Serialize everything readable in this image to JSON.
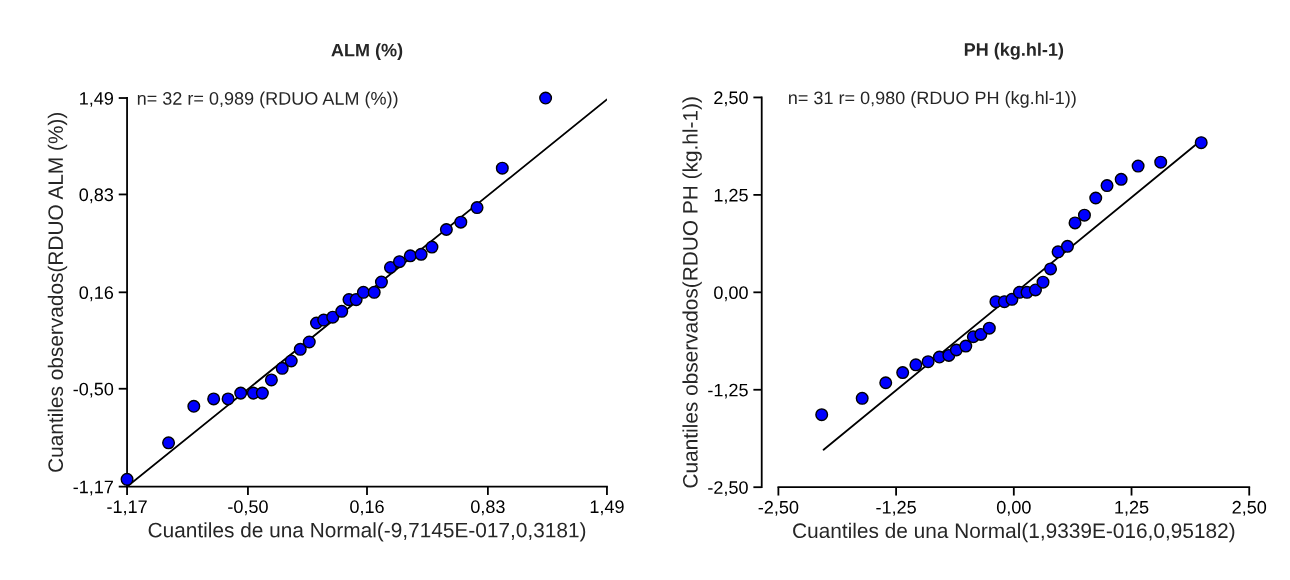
{
  "chart_data": [
    {
      "type": "scatter",
      "title": "ALM (%)",
      "xlabel": "Cuantiles de una Normal(-9,7145E-017,0,3181)",
      "ylabel": "Cuantiles observados(RDUO ALM (%))",
      "annotations": [
        "n= 32 r= 0,989 (RDUO ALM (%))"
      ],
      "xlim": [
        -1.17,
        1.49
      ],
      "ylim": [
        -1.17,
        1.49
      ],
      "xticks": [
        {
          "value": -1.17,
          "label": "-1,17"
        },
        {
          "value": -0.5,
          "label": "-0,50"
        },
        {
          "value": 0.16,
          "label": "0,16"
        },
        {
          "value": 0.83,
          "label": "0,83"
        },
        {
          "value": 1.49,
          "label": "1,49"
        }
      ],
      "yticks": [
        {
          "value": -1.17,
          "label": "-1,17"
        },
        {
          "value": -0.5,
          "label": "-0,50"
        },
        {
          "value": 0.16,
          "label": "0,16"
        },
        {
          "value": 0.83,
          "label": "0,83"
        },
        {
          "value": 1.49,
          "label": "1,49"
        }
      ],
      "grid": false,
      "marker": "circle",
      "series": [
        {
          "color": "#0000ff",
          "x": [
            -1.17,
            -0.94,
            -0.8,
            -0.69,
            -0.61,
            -0.54,
            -0.47,
            -0.42,
            -0.37,
            -0.31,
            -0.26,
            -0.21,
            -0.16,
            -0.12,
            -0.08,
            -0.03,
            0.02,
            0.06,
            0.1,
            0.14,
            0.2,
            0.24,
            0.29,
            0.34,
            0.4,
            0.46,
            0.52,
            0.6,
            0.68,
            0.77,
            0.91,
            1.15
          ],
          "values": [
            -1.12,
            -0.87,
            -0.62,
            -0.57,
            -0.57,
            -0.53,
            -0.53,
            -0.53,
            -0.44,
            -0.36,
            -0.31,
            -0.23,
            -0.18,
            -0.05,
            -0.03,
            -0.01,
            0.03,
            0.11,
            0.11,
            0.16,
            0.16,
            0.23,
            0.33,
            0.37,
            0.41,
            0.42,
            0.47,
            0.59,
            0.64,
            0.74,
            1.01,
            1.49
          ]
        },
        {
          "type": "line",
          "color": "#000000",
          "x": [
            -1.17,
            1.49
          ],
          "values": [
            -1.17,
            1.48
          ],
          "marker": "none"
        }
      ]
    },
    {
      "type": "scatter",
      "title": "PH (kg.hl-1)",
      "xlabel": "Cuantiles de una Normal(1,9339E-016,0,95182)",
      "ylabel": "Cuantiles observados(RDUO PH (kg.hl-1))",
      "annotations": [
        "n= 31 r= 0,980 (RDUO PH (kg.hl-1))"
      ],
      "xlim": [
        -2.5,
        2.5
      ],
      "ylim": [
        -2.5,
        2.5
      ],
      "xticks": [
        {
          "value": -2.5,
          "label": "-2,50"
        },
        {
          "value": -1.25,
          "label": "-1,25"
        },
        {
          "value": 0,
          "label": "0,00"
        },
        {
          "value": 1.25,
          "label": "1,25"
        },
        {
          "value": 2.5,
          "label": "2,50"
        }
      ],
      "yticks": [
        {
          "value": -2.5,
          "label": "-2,50"
        },
        {
          "value": -1.25,
          "label": "-1,25"
        },
        {
          "value": 0,
          "label": "0,00"
        },
        {
          "value": 1.25,
          "label": "1,25"
        },
        {
          "value": 2.5,
          "label": "2,50"
        }
      ],
      "grid": false,
      "marker": "circle",
      "series": [
        {
          "color": "#0000ff",
          "x": [
            -2.04,
            -1.61,
            -1.36,
            -1.18,
            -1.04,
            -0.91,
            -0.79,
            -0.69,
            -0.61,
            -0.51,
            -0.43,
            -0.35,
            -0.26,
            -0.19,
            -0.1,
            -0.02,
            0.06,
            0.14,
            0.23,
            0.31,
            0.39,
            0.47,
            0.57,
            0.65,
            0.75,
            0.87,
            0.99,
            1.14,
            1.32,
            1.56,
            1.99
          ],
          "values": [
            -1.57,
            -1.36,
            -1.16,
            -1.03,
            -0.93,
            -0.89,
            -0.83,
            -0.81,
            -0.74,
            -0.69,
            -0.57,
            -0.54,
            -0.46,
            -0.12,
            -0.12,
            -0.09,
            0.0,
            0.0,
            0.03,
            0.13,
            0.3,
            0.52,
            0.59,
            0.89,
            0.99,
            1.21,
            1.37,
            1.45,
            1.62,
            1.67,
            1.92
          ]
        },
        {
          "type": "line",
          "color": "#000000",
          "x": [
            -2.02,
            1.99
          ],
          "values": [
            -2.02,
            1.95
          ],
          "marker": "none"
        }
      ]
    }
  ]
}
